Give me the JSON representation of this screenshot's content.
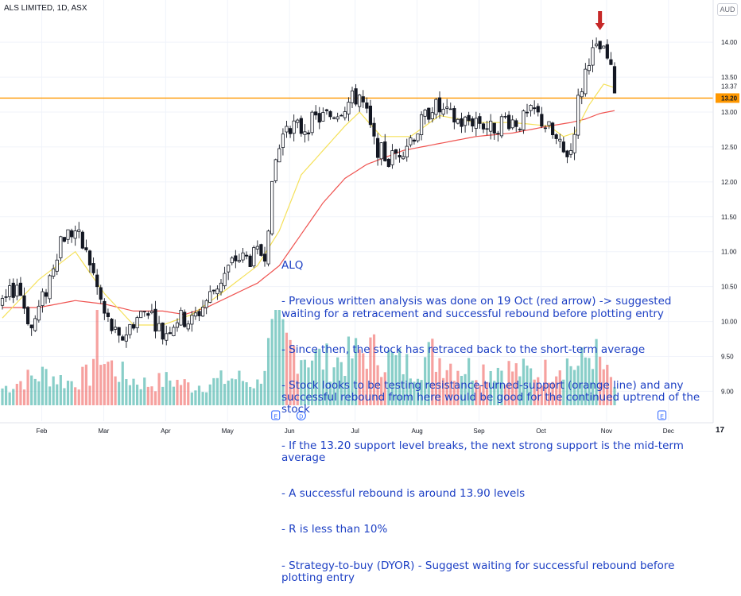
{
  "header": {
    "title": "ALS LIMITED, 1D, ASX",
    "currency": "AUD"
  },
  "annotation": {
    "lines": [
      "ALQ",
      "- Previous written analysis was done on 19 Oct (red arrow) -> suggested waiting for a retracement and successful rebound before plotting entry",
      "- Since then, the stock has retraced back to the short-term average",
      "- Stock looks to be testing resistance-turned-support (orange line) and any successful rebound from here would be good for the continued uptrend of the stock",
      "- If the 13.20 support level breaks, the next strong support is the mid-term average",
      "- A successful rebound is around 13.90 levels",
      "- R is less than 10%",
      "- Strategy-to-buy (DYOR) - Suggest waiting for successful rebound before plotting entry"
    ]
  },
  "colors": {
    "up": "#26a69a",
    "down": "#ef5350",
    "candle": "#131722",
    "short_ma": "#f5e15a",
    "mid_ma": "#ef5350",
    "support_line": "#ff9800",
    "arrow": "#c62828",
    "annotation": "#1c3fc4"
  },
  "chart_data": {
    "type": "candlestick",
    "title": "ALS LIMITED, 1D, ASX",
    "x_axis": {
      "labels": [
        "Feb",
        "Mar",
        "Apr",
        "May",
        "Jun",
        "Jul",
        "Aug",
        "Sep",
        "Oct",
        "Nov",
        "Dec"
      ]
    },
    "y_axis": {
      "ticks": [
        "14.00",
        "13.50",
        "13.00",
        "12.50",
        "12.00",
        "11.50",
        "11.00",
        "10.50",
        "10.00",
        "9.50",
        "9.00"
      ],
      "range": [
        8.8,
        14.4
      ],
      "badges": [
        {
          "value": 13.37,
          "label": "13.37"
        },
        {
          "value": 13.2,
          "label": "13.20",
          "highlight": true
        }
      ]
    },
    "horizontal_levels": [
      {
        "value": 13.2,
        "name": "support"
      }
    ],
    "arrow": {
      "date_index": 164,
      "label_date": "19 Oct"
    },
    "event_markers": [
      {
        "date_index": 75,
        "label": "E"
      },
      {
        "date_index": 82,
        "label": "D"
      },
      {
        "date_index": 181,
        "label": "E"
      }
    ],
    "anchors": [
      [
        0,
        10.2
      ],
      [
        4,
        10.55
      ],
      [
        8,
        9.9
      ],
      [
        12,
        10.45
      ],
      [
        16,
        11.2
      ],
      [
        20,
        11.3
      ],
      [
        24,
        10.85
      ],
      [
        28,
        10.1
      ],
      [
        32,
        9.7
      ],
      [
        36,
        10.0
      ],
      [
        40,
        10.2
      ],
      [
        44,
        9.8
      ],
      [
        48,
        10.05
      ],
      [
        52,
        10.0
      ],
      [
        56,
        10.3
      ],
      [
        60,
        10.6
      ],
      [
        64,
        10.9
      ],
      [
        68,
        10.9
      ],
      [
        72,
        11.0
      ],
      [
        75,
        12.3
      ],
      [
        78,
        12.85
      ],
      [
        82,
        12.75
      ],
      [
        86,
        12.9
      ],
      [
        90,
        12.95
      ],
      [
        94,
        13.1
      ],
      [
        98,
        13.25
      ],
      [
        100,
        12.95
      ],
      [
        102,
        12.55
      ],
      [
        106,
        12.3
      ],
      [
        110,
        12.5
      ],
      [
        114,
        12.75
      ],
      [
        118,
        13.1
      ],
      [
        122,
        12.95
      ],
      [
        126,
        12.85
      ],
      [
        130,
        12.9
      ],
      [
        134,
        12.75
      ],
      [
        138,
        12.9
      ],
      [
        142,
        12.85
      ],
      [
        146,
        13.0
      ],
      [
        150,
        12.75
      ],
      [
        154,
        12.4
      ],
      [
        156,
        12.45
      ],
      [
        158,
        13.15
      ],
      [
        161,
        13.8
      ],
      [
        164,
        13.9
      ],
      [
        166,
        13.75
      ],
      [
        168,
        13.35
      ]
    ],
    "short_ma_anchors": [
      [
        0,
        10.05
      ],
      [
        10,
        10.6
      ],
      [
        20,
        11.0
      ],
      [
        28,
        10.4
      ],
      [
        36,
        9.95
      ],
      [
        44,
        9.95
      ],
      [
        52,
        10.1
      ],
      [
        60,
        10.4
      ],
      [
        70,
        10.8
      ],
      [
        76,
        11.3
      ],
      [
        82,
        12.1
      ],
      [
        88,
        12.45
      ],
      [
        94,
        12.8
      ],
      [
        98,
        13.0
      ],
      [
        104,
        12.65
      ],
      [
        112,
        12.65
      ],
      [
        120,
        12.95
      ],
      [
        130,
        12.85
      ],
      [
        140,
        12.85
      ],
      [
        150,
        12.8
      ],
      [
        154,
        12.65
      ],
      [
        157,
        12.7
      ],
      [
        161,
        13.1
      ],
      [
        165,
        13.4
      ],
      [
        168,
        13.35
      ]
    ],
    "mid_ma_anchors": [
      [
        0,
        10.2
      ],
      [
        10,
        10.2
      ],
      [
        20,
        10.3
      ],
      [
        28,
        10.25
      ],
      [
        36,
        10.15
      ],
      [
        44,
        10.15
      ],
      [
        50,
        10.1
      ],
      [
        56,
        10.2
      ],
      [
        62,
        10.35
      ],
      [
        70,
        10.55
      ],
      [
        76,
        10.8
      ],
      [
        82,
        11.25
      ],
      [
        88,
        11.7
      ],
      [
        94,
        12.05
      ],
      [
        100,
        12.25
      ],
      [
        110,
        12.45
      ],
      [
        120,
        12.55
      ],
      [
        130,
        12.65
      ],
      [
        140,
        12.7
      ],
      [
        150,
        12.8
      ],
      [
        156,
        12.85
      ],
      [
        160,
        12.9
      ],
      [
        164,
        12.98
      ],
      [
        168,
        13.02
      ]
    ],
    "volume_range": [
      0,
      4500000
    ],
    "volume_anchors": [
      [
        0,
        800000
      ],
      [
        6,
        1200000
      ],
      [
        12,
        1500000
      ],
      [
        18,
        1100000
      ],
      [
        24,
        1400000
      ],
      [
        26,
        3200000
      ],
      [
        28,
        2100000
      ],
      [
        34,
        1300000
      ],
      [
        40,
        1000000
      ],
      [
        46,
        1200000
      ],
      [
        52,
        900000
      ],
      [
        58,
        1100000
      ],
      [
        64,
        1300000
      ],
      [
        70,
        1000000
      ],
      [
        75,
        3600000
      ],
      [
        78,
        2800000
      ],
      [
        84,
        2400000
      ],
      [
        90,
        2000000
      ],
      [
        96,
        2300000
      ],
      [
        100,
        2600000
      ],
      [
        106,
        2200000
      ],
      [
        112,
        1800000
      ],
      [
        118,
        2400000
      ],
      [
        124,
        1900000
      ],
      [
        130,
        1700000
      ],
      [
        136,
        1800000
      ],
      [
        142,
        1600000
      ],
      [
        148,
        1500000
      ],
      [
        154,
        2100000
      ],
      [
        158,
        1800000
      ],
      [
        162,
        2600000
      ],
      [
        166,
        1400000
      ],
      [
        168,
        900000
      ]
    ]
  }
}
